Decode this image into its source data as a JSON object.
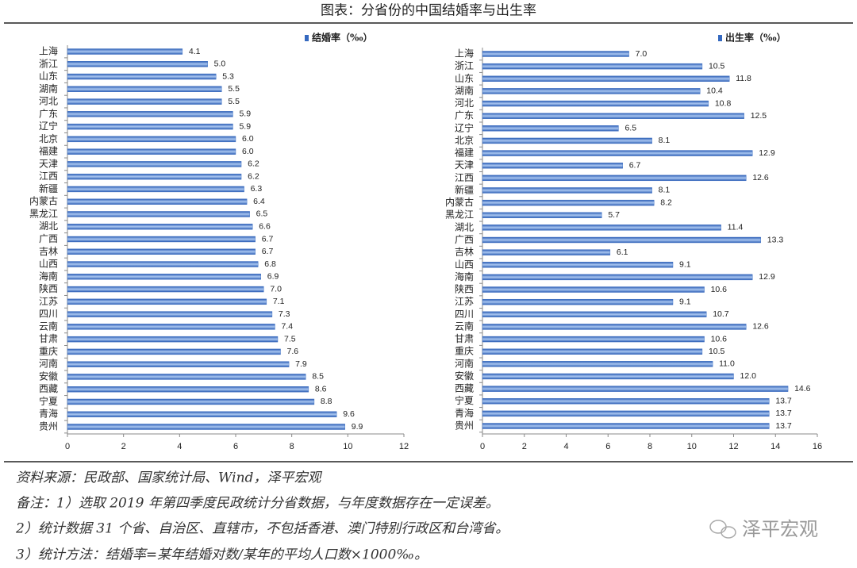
{
  "title": "图表：分省份的中国结婚率与出生率",
  "notes": [
    "资料来源：民政部、国家统计局、Wind，泽平宏观",
    "备注：1）选取 2019 年第四季度民政统计分省数据，与年度数据存在一定误差。",
    "2）统计数据 31 个省、自治区、直辖市，不包括香港、澳门特别行政区和台湾省。",
    "3）统计方法：结婚率=某年结婚对数/某年的平均人口数×1000‰。"
  ],
  "watermark": "泽平宏观",
  "chart_data": [
    {
      "type": "barh",
      "categories": [
        "上海",
        "浙江",
        "山东",
        "湖南",
        "河北",
        "广东",
        "辽宁",
        "北京",
        "福建",
        "天津",
        "江西",
        "新疆",
        "内蒙古",
        "黑龙江",
        "湖北",
        "广西",
        "吉林",
        "山西",
        "海南",
        "陕西",
        "江苏",
        "四川",
        "云南",
        "甘肃",
        "重庆",
        "河南",
        "安徽",
        "西藏",
        "宁夏",
        "青海",
        "贵州"
      ],
      "series": [
        {
          "name": "结婚率（‰）",
          "color": "#3569c0",
          "values": [
            4.1,
            5.0,
            5.3,
            5.5,
            5.5,
            5.9,
            5.9,
            6.0,
            6.0,
            6.2,
            6.2,
            6.3,
            6.4,
            6.5,
            6.6,
            6.7,
            6.7,
            6.8,
            6.9,
            7.0,
            7.1,
            7.3,
            7.4,
            7.5,
            7.6,
            7.9,
            8.5,
            8.6,
            8.8,
            9.6,
            9.9
          ],
          "value_labels": [
            "4.1",
            "5.0",
            "5.3",
            "5.5",
            "5.5",
            "5.9",
            "5.9",
            "6.0",
            "6.0",
            "6.2",
            "6.2",
            "6.3",
            "6.4",
            "6.5",
            "6.6",
            "6.7",
            "6.7",
            "6.8",
            "6.9",
            "7.0",
            "7.1",
            "7.3",
            "7.4",
            "7.5",
            "7.6",
            "7.9",
            "8.5",
            "8.6",
            "8.8",
            "9.6",
            "9.9"
          ]
        }
      ],
      "xlim": [
        0,
        12
      ],
      "xticks": [
        0,
        2,
        4,
        6,
        8,
        10,
        12
      ],
      "legend": "top-right"
    },
    {
      "type": "barh",
      "categories": [
        "上海",
        "浙江",
        "山东",
        "湖南",
        "河北",
        "广东",
        "辽宁",
        "北京",
        "福建",
        "天津",
        "江西",
        "新疆",
        "内蒙古",
        "黑龙江",
        "湖北",
        "广西",
        "吉林",
        "山西",
        "海南",
        "陕西",
        "江苏",
        "四川",
        "云南",
        "甘肃",
        "重庆",
        "河南",
        "安徽",
        "西藏",
        "宁夏",
        "青海",
        "贵州"
      ],
      "series": [
        {
          "name": "出生率（‰）",
          "color": "#3569c0",
          "values": [
            7.0,
            10.5,
            11.8,
            10.4,
            10.8,
            12.5,
            6.5,
            8.1,
            12.9,
            6.7,
            12.6,
            8.1,
            8.2,
            5.7,
            11.4,
            13.3,
            6.1,
            9.1,
            12.9,
            10.6,
            9.1,
            10.7,
            12.6,
            10.6,
            10.5,
            11.0,
            12.0,
            14.6,
            13.7,
            13.7,
            13.7
          ],
          "value_labels": [
            "7.0",
            "10.5",
            "11.8",
            "10.4",
            "10.8",
            "12.5",
            "6.5",
            "8.1",
            "12.9",
            "6.7",
            "12.6",
            "8.1",
            "8.2",
            "5.7",
            "11.4",
            "13.3",
            "6.1",
            "9.1",
            "12.9",
            "10.6",
            "9.1",
            "10.7",
            "12.6",
            "10.6",
            "10.5",
            "11.0",
            "12.0",
            "14.6",
            "13.7",
            "13.7",
            "13.7"
          ]
        }
      ],
      "xlim": [
        0,
        16
      ],
      "xticks": [
        0,
        2,
        4,
        6,
        8,
        10,
        12,
        14,
        16
      ],
      "legend": "top-right"
    }
  ]
}
